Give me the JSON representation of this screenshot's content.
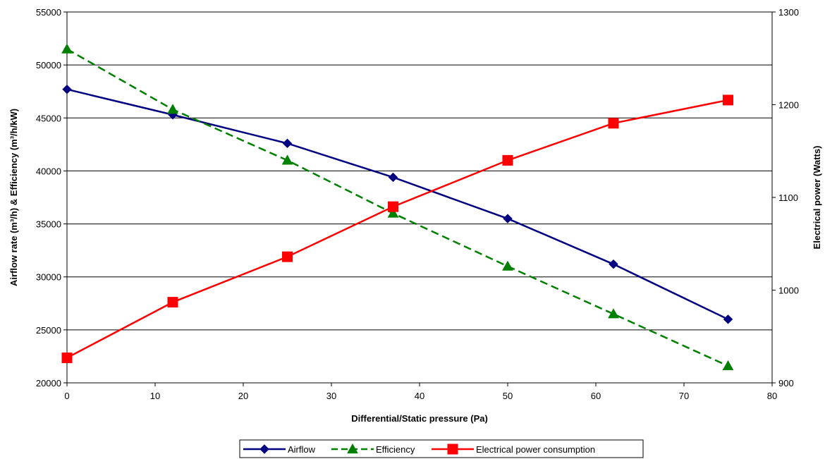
{
  "chart_data": {
    "type": "line",
    "title": "",
    "xlabel": "Differential/Static pressure (Pa)",
    "ylabel_left": "Airflow rate (m³/h) & Efficiency (m³/h/kW)",
    "ylabel_right": "Electrical power (Watts)",
    "xlim": [
      0,
      80
    ],
    "x_ticks": [
      "0",
      "10",
      "20",
      "30",
      "40",
      "50",
      "60",
      "70",
      "80"
    ],
    "ylim_left": [
      20000,
      55000
    ],
    "y_ticks_left": [
      "20000",
      "25000",
      "30000",
      "35000",
      "40000",
      "45000",
      "50000",
      "55000"
    ],
    "ylim_right": [
      900,
      1300
    ],
    "y_ticks_right": [
      "900",
      "1000",
      "1100",
      "1200",
      "1300"
    ],
    "grid": "horizontal",
    "legend_position": "bottom",
    "series": [
      {
        "name": "Airflow",
        "axis": "left",
        "color": "#000080",
        "marker": "diamond",
        "dash": "solid",
        "x": [
          0,
          12,
          25,
          37,
          50,
          62,
          75
        ],
        "values": [
          47700,
          45300,
          42600,
          39400,
          35500,
          31200,
          26000
        ]
      },
      {
        "name": "Efficiency",
        "axis": "left",
        "color": "#008000",
        "marker": "triangle",
        "dash": "dashed",
        "x": [
          0,
          12,
          25,
          37,
          50,
          62,
          75
        ],
        "values": [
          51500,
          45800,
          41000,
          36000,
          31000,
          26500,
          21600
        ]
      },
      {
        "name": "Electrical power consumption",
        "axis": "right",
        "color": "#ff0000",
        "marker": "square",
        "dash": "solid",
        "x": [
          0,
          12,
          25,
          37,
          50,
          62,
          75
        ],
        "values": [
          927,
          987,
          1036,
          1090,
          1140,
          1180,
          1205
        ]
      }
    ]
  }
}
